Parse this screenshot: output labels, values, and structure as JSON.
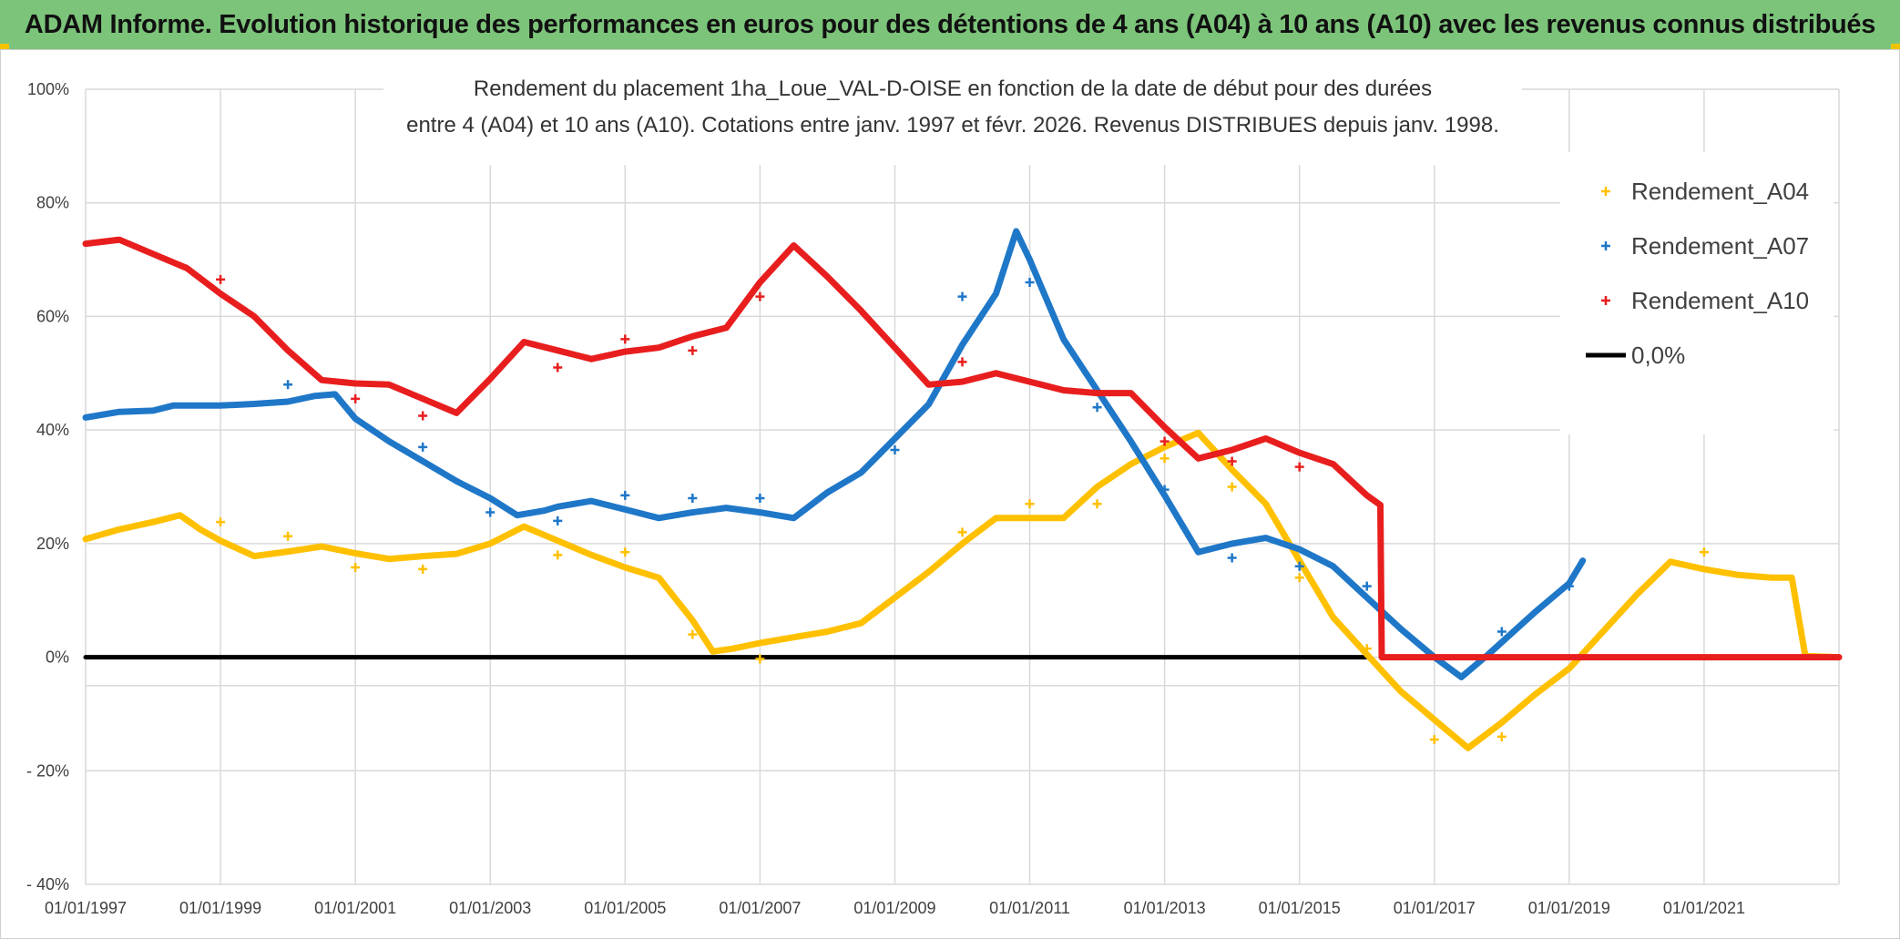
{
  "header": {
    "title": "ADAM Informe. Evolution historique des performances en euros pour des détentions de 4 ans (A04) à 10 ans (A10) avec les revenus connus distribués"
  },
  "chart_data": {
    "type": "line",
    "title_lines": [
      "Rendement du placement 1ha_Loue_VAL-D-OISE en fonction de la date de début pour des durées",
      "entre 4 (A04) et 10 ans (A10). Cotations entre janv. 1997 et févr. 2026. Revenus DISTRIBUES depuis janv. 1998."
    ],
    "xlim": [
      1997.0,
      2023.0
    ],
    "ylim": [
      -40,
      100
    ],
    "y_ticks": [
      {
        "value": 100,
        "label": "100%"
      },
      {
        "value": 80,
        "label": "80%"
      },
      {
        "value": 60,
        "label": "60%"
      },
      {
        "value": 40,
        "label": "40%"
      },
      {
        "value": 20,
        "label": "20%"
      },
      {
        "value": 0,
        "label": "0%"
      },
      {
        "value": -20,
        "label": "- 20%"
      },
      {
        "value": -40,
        "label": "- 40%"
      }
    ],
    "x_ticks": [
      {
        "value": 1997,
        "label": "01/01/1997"
      },
      {
        "value": 1999,
        "label": "01/01/1999"
      },
      {
        "value": 2001,
        "label": "01/01/2001"
      },
      {
        "value": 2003,
        "label": "01/01/2003"
      },
      {
        "value": 2005,
        "label": "01/01/2005"
      },
      {
        "value": 2007,
        "label": "01/01/2007"
      },
      {
        "value": 2009,
        "label": "01/01/2009"
      },
      {
        "value": 2011,
        "label": "01/01/2011"
      },
      {
        "value": 2013,
        "label": "01/01/2013"
      },
      {
        "value": 2015,
        "label": "01/01/2015"
      },
      {
        "value": 2017,
        "label": "01/01/2017"
      },
      {
        "value": 2019,
        "label": "01/01/2019"
      },
      {
        "value": 2021,
        "label": "01/01/2021"
      }
    ],
    "series": [
      {
        "name": "Rendement_A04",
        "color": "#ffc000",
        "points": [
          [
            1997.0,
            20.8
          ],
          [
            1997.5,
            22.5
          ],
          [
            1998.0,
            23.8
          ],
          [
            1998.4,
            25.0
          ],
          [
            1998.7,
            22.5
          ],
          [
            1999.0,
            20.5
          ],
          [
            1999.5,
            17.8
          ],
          [
            2000.0,
            18.6
          ],
          [
            2000.5,
            19.5
          ],
          [
            2001.0,
            18.3
          ],
          [
            2001.5,
            17.3
          ],
          [
            2002.0,
            17.8
          ],
          [
            2002.5,
            18.2
          ],
          [
            2003.0,
            20.0
          ],
          [
            2003.5,
            23.0
          ],
          [
            2004.0,
            20.5
          ],
          [
            2004.5,
            18.0
          ],
          [
            2005.0,
            15.8
          ],
          [
            2005.5,
            14.0
          ],
          [
            2006.0,
            6.5
          ],
          [
            2006.3,
            1.0
          ],
          [
            2006.6,
            1.5
          ],
          [
            2007.0,
            2.5
          ],
          [
            2007.5,
            3.5
          ],
          [
            2008.0,
            4.5
          ],
          [
            2008.5,
            6.0
          ],
          [
            2009.0,
            10.5
          ],
          [
            2009.5,
            15.0
          ],
          [
            2010.0,
            20.0
          ],
          [
            2010.5,
            24.5
          ],
          [
            2011.0,
            24.5
          ],
          [
            2011.5,
            24.5
          ],
          [
            2012.0,
            30.0
          ],
          [
            2012.5,
            34.0
          ],
          [
            2013.0,
            37.0
          ],
          [
            2013.5,
            39.5
          ],
          [
            2014.0,
            33.0
          ],
          [
            2014.5,
            27.0
          ],
          [
            2015.0,
            17.0
          ],
          [
            2015.5,
            7.0
          ],
          [
            2016.0,
            0.5
          ],
          [
            2016.5,
            -6.0
          ],
          [
            2017.0,
            -11.0
          ],
          [
            2017.5,
            -16.0
          ],
          [
            2018.0,
            -11.5
          ],
          [
            2018.5,
            -6.5
          ],
          [
            2019.0,
            -2.0
          ],
          [
            2019.5,
            4.5
          ],
          [
            2020.0,
            11.0
          ],
          [
            2020.5,
            16.8
          ],
          [
            2021.0,
            15.5
          ],
          [
            2021.5,
            14.5
          ],
          [
            2022.0,
            14.0
          ],
          [
            2022.3,
            14.0
          ],
          [
            2022.5,
            0.2
          ],
          [
            2023.0,
            0.0
          ]
        ],
        "scatter": [
          [
            1999.0,
            23.8
          ],
          [
            2000.0,
            21.3
          ],
          [
            2001.0,
            15.8
          ],
          [
            2002.0,
            15.5
          ],
          [
            2004.0,
            18.0
          ],
          [
            2005.0,
            18.5
          ],
          [
            2006.0,
            4.0
          ],
          [
            2007.0,
            -0.3
          ],
          [
            2010.0,
            22.0
          ],
          [
            2011.0,
            27.0
          ],
          [
            2012.0,
            27.0
          ],
          [
            2013.0,
            35.0
          ],
          [
            2014.0,
            30.0
          ],
          [
            2015.0,
            14.0
          ],
          [
            2016.0,
            1.5
          ],
          [
            2017.0,
            -14.5
          ],
          [
            2018.0,
            -14.0
          ],
          [
            2021.0,
            18.5
          ]
        ]
      },
      {
        "name": "Rendement_A07",
        "color": "#1f77c8",
        "points": [
          [
            1997.0,
            42.2
          ],
          [
            1997.5,
            43.2
          ],
          [
            1998.0,
            43.4
          ],
          [
            1998.3,
            44.3
          ],
          [
            1999.0,
            44.3
          ],
          [
            1999.5,
            44.6
          ],
          [
            2000.0,
            45.0
          ],
          [
            2000.4,
            46.0
          ],
          [
            2000.7,
            46.3
          ],
          [
            2001.0,
            42.0
          ],
          [
            2001.5,
            38.0
          ],
          [
            2002.0,
            34.5
          ],
          [
            2002.5,
            31.0
          ],
          [
            2003.0,
            28.0
          ],
          [
            2003.4,
            25.0
          ],
          [
            2003.8,
            25.8
          ],
          [
            2004.0,
            26.5
          ],
          [
            2004.5,
            27.5
          ],
          [
            2005.0,
            26.0
          ],
          [
            2005.5,
            24.5
          ],
          [
            2006.0,
            25.5
          ],
          [
            2006.5,
            26.3
          ],
          [
            2007.0,
            25.5
          ],
          [
            2007.5,
            24.5
          ],
          [
            2008.0,
            29.0
          ],
          [
            2008.5,
            32.5
          ],
          [
            2009.0,
            38.5
          ],
          [
            2009.5,
            44.5
          ],
          [
            2010.0,
            55.0
          ],
          [
            2010.5,
            64.0
          ],
          [
            2010.8,
            75.0
          ],
          [
            2011.0,
            70.0
          ],
          [
            2011.5,
            56.0
          ],
          [
            2012.0,
            47.0
          ],
          [
            2012.5,
            38.0
          ],
          [
            2013.0,
            28.5
          ],
          [
            2013.5,
            18.5
          ],
          [
            2014.0,
            20.0
          ],
          [
            2014.5,
            21.0
          ],
          [
            2015.0,
            19.0
          ],
          [
            2015.5,
            16.0
          ],
          [
            2016.0,
            10.5
          ],
          [
            2016.5,
            5.0
          ],
          [
            2017.0,
            0.0
          ],
          [
            2017.4,
            -3.5
          ],
          [
            2017.8,
            0.5
          ],
          [
            2018.5,
            8.0
          ],
          [
            2019.0,
            13.0
          ],
          [
            2019.2,
            17.0
          ]
        ],
        "scatter": [
          [
            2000.0,
            48.0
          ],
          [
            2002.0,
            37.0
          ],
          [
            2003.0,
            25.5
          ],
          [
            2004.0,
            24.0
          ],
          [
            2005.0,
            28.5
          ],
          [
            2006.0,
            28.0
          ],
          [
            2007.0,
            28.0
          ],
          [
            2009.0,
            36.5
          ],
          [
            2010.0,
            63.5
          ],
          [
            2011.0,
            66.0
          ],
          [
            2012.0,
            44.0
          ],
          [
            2013.0,
            29.5
          ],
          [
            2014.0,
            17.5
          ],
          [
            2015.0,
            16.0
          ],
          [
            2016.0,
            12.5
          ],
          [
            2018.0,
            4.5
          ],
          [
            2019.0,
            12.5
          ]
        ]
      },
      {
        "name": "Rendement_A10",
        "color": "#e81e1e",
        "points": [
          [
            1997.0,
            72.8
          ],
          [
            1997.5,
            73.5
          ],
          [
            1998.0,
            71.0
          ],
          [
            1998.5,
            68.5
          ],
          [
            1999.0,
            64.0
          ],
          [
            1999.5,
            60.0
          ],
          [
            2000.0,
            54.0
          ],
          [
            2000.5,
            48.8
          ],
          [
            2001.0,
            48.2
          ],
          [
            2001.5,
            48.0
          ],
          [
            2002.0,
            45.5
          ],
          [
            2002.5,
            43.0
          ],
          [
            2003.0,
            49.0
          ],
          [
            2003.5,
            55.5
          ],
          [
            2004.0,
            54.0
          ],
          [
            2004.5,
            52.5
          ],
          [
            2005.0,
            53.8
          ],
          [
            2005.5,
            54.5
          ],
          [
            2006.0,
            56.5
          ],
          [
            2006.5,
            58.0
          ],
          [
            2007.0,
            66.0
          ],
          [
            2007.5,
            72.5
          ],
          [
            2008.0,
            67.0
          ],
          [
            2008.5,
            61.0
          ],
          [
            2009.0,
            54.5
          ],
          [
            2009.5,
            48.0
          ],
          [
            2010.0,
            48.5
          ],
          [
            2010.5,
            50.0
          ],
          [
            2011.0,
            48.5
          ],
          [
            2011.5,
            47.0
          ],
          [
            2012.0,
            46.5
          ],
          [
            2012.5,
            46.5
          ],
          [
            2013.0,
            40.5
          ],
          [
            2013.5,
            35.0
          ],
          [
            2014.0,
            36.5
          ],
          [
            2014.5,
            38.5
          ],
          [
            2015.0,
            36.0
          ],
          [
            2015.5,
            34.0
          ],
          [
            2016.0,
            28.5
          ],
          [
            2016.2,
            26.8
          ],
          [
            2016.22,
            0.0
          ],
          [
            2023.0,
            0.0
          ]
        ],
        "scatter": [
          [
            1999.0,
            66.5
          ],
          [
            2001.0,
            45.5
          ],
          [
            2002.0,
            42.5
          ],
          [
            2004.0,
            51.0
          ],
          [
            2005.0,
            56.0
          ],
          [
            2006.0,
            54.0
          ],
          [
            2007.0,
            63.5
          ],
          [
            2010.0,
            52.0
          ],
          [
            2013.0,
            38.0
          ],
          [
            2014.0,
            34.5
          ],
          [
            2015.0,
            33.5
          ]
        ]
      },
      {
        "name": "0,0%",
        "color": "#000000",
        "points": [
          [
            1997.0,
            0.0
          ],
          [
            2016.0,
            0.0
          ]
        ],
        "scatter": []
      }
    ],
    "legend": "top-right"
  }
}
